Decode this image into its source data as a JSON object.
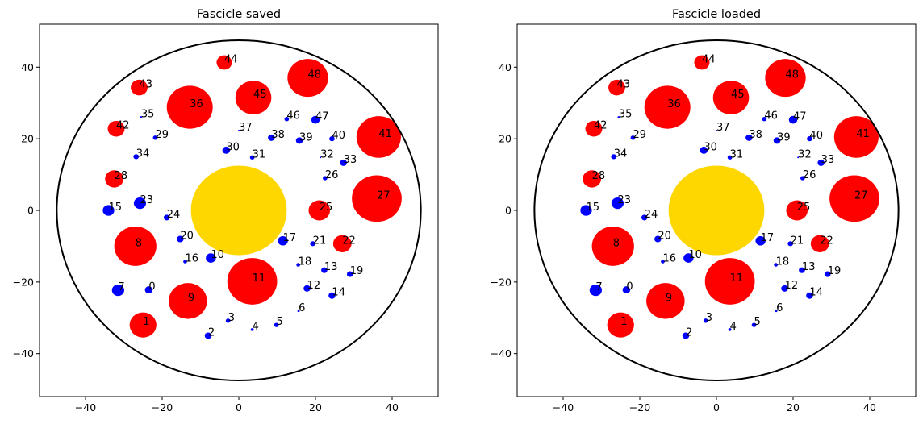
{
  "chart_data": [
    {
      "type": "scatter",
      "title": "Fascicle saved",
      "xlim": [
        -52,
        52
      ],
      "ylim": [
        -52,
        52
      ],
      "xticks": [
        -40,
        -20,
        0,
        20,
        40
      ],
      "yticks": [
        -40,
        -20,
        0,
        20,
        40
      ],
      "grid": false,
      "boundary_circle": {
        "cx": 0,
        "cy": 0,
        "r": 47.5,
        "color": "#000000"
      },
      "nerve": {
        "x": 0,
        "y": 0,
        "r": 12.5,
        "color": "#ffd700"
      },
      "axons": [
        {
          "label": "0",
          "x": -23.5,
          "y": -22.2,
          "r": 1.0,
          "color": "#0000ff"
        },
        {
          "label": "1",
          "x": -25.0,
          "y": -32.0,
          "r": 3.5,
          "color": "#ff0000"
        },
        {
          "label": "2",
          "x": -8.0,
          "y": -35.0,
          "r": 0.9,
          "color": "#0000ff"
        },
        {
          "label": "3",
          "x": -2.8,
          "y": -30.8,
          "r": 0.6,
          "color": "#0000ff"
        },
        {
          "label": "4",
          "x": 3.5,
          "y": -33.3,
          "r": 0.4,
          "color": "#0000ff"
        },
        {
          "label": "5",
          "x": 9.8,
          "y": -32.0,
          "r": 0.6,
          "color": "#0000ff"
        },
        {
          "label": "6",
          "x": 15.6,
          "y": -28.1,
          "r": 0.3,
          "color": "#0000ff"
        },
        {
          "label": "7",
          "x": -31.5,
          "y": -22.3,
          "r": 1.6,
          "color": "#0000ff"
        },
        {
          "label": "8",
          "x": -27.0,
          "y": -10.0,
          "r": 5.5,
          "color": "#ff0000"
        },
        {
          "label": "9",
          "x": -13.3,
          "y": -25.3,
          "r": 5.0,
          "color": "#ff0000"
        },
        {
          "label": "10",
          "x": -7.3,
          "y": -13.3,
          "r": 1.3,
          "color": "#0000ff"
        },
        {
          "label": "11",
          "x": 3.5,
          "y": -19.8,
          "r": 6.5,
          "color": "#ff0000"
        },
        {
          "label": "12",
          "x": 17.8,
          "y": -21.8,
          "r": 0.9,
          "color": "#0000ff"
        },
        {
          "label": "13",
          "x": 22.3,
          "y": -16.7,
          "r": 0.8,
          "color": "#0000ff"
        },
        {
          "label": "14",
          "x": 24.3,
          "y": -23.8,
          "r": 0.9,
          "color": "#0000ff"
        },
        {
          "label": "15",
          "x": -34.0,
          "y": 0.0,
          "r": 1.5,
          "color": "#0000ff"
        },
        {
          "label": "16",
          "x": -14.0,
          "y": -14.3,
          "r": 0.5,
          "color": "#0000ff"
        },
        {
          "label": "17",
          "x": 11.5,
          "y": -8.5,
          "r": 1.3,
          "color": "#0000ff"
        },
        {
          "label": "18",
          "x": 15.5,
          "y": -15.2,
          "r": 0.5,
          "color": "#0000ff"
        },
        {
          "label": "19",
          "x": 29.0,
          "y": -17.8,
          "r": 0.8,
          "color": "#0000ff"
        },
        {
          "label": "20",
          "x": -15.3,
          "y": -8.0,
          "r": 0.9,
          "color": "#0000ff"
        },
        {
          "label": "21",
          "x": 19.3,
          "y": -9.3,
          "r": 0.7,
          "color": "#0000ff"
        },
        {
          "label": "22",
          "x": 27.0,
          "y": -9.3,
          "r": 2.4,
          "color": "#ff0000"
        },
        {
          "label": "23",
          "x": -25.8,
          "y": 2.0,
          "r": 1.6,
          "color": "#0000ff"
        },
        {
          "label": "24",
          "x": -18.8,
          "y": -2.0,
          "r": 0.8,
          "color": "#0000ff"
        },
        {
          "label": "25",
          "x": 21.0,
          "y": 0.0,
          "r": 2.8,
          "color": "#ff0000"
        },
        {
          "label": "26",
          "x": 22.5,
          "y": 9.0,
          "r": 0.6,
          "color": "#0000ff"
        },
        {
          "label": "27",
          "x": 36.0,
          "y": 3.3,
          "r": 6.5,
          "color": "#ff0000"
        },
        {
          "label": "28",
          "x": -32.5,
          "y": 8.8,
          "r": 2.4,
          "color": "#ff0000"
        },
        {
          "label": "29",
          "x": -21.8,
          "y": 20.3,
          "r": 0.6,
          "color": "#0000ff"
        },
        {
          "label": "30",
          "x": -3.3,
          "y": 16.8,
          "r": 1.0,
          "color": "#0000ff"
        },
        {
          "label": "31",
          "x": 3.5,
          "y": 14.8,
          "r": 0.6,
          "color": "#0000ff"
        },
        {
          "label": "32",
          "x": 21.3,
          "y": 14.8,
          "r": 0.2,
          "color": "#0000ff"
        },
        {
          "label": "33",
          "x": 27.3,
          "y": 13.3,
          "r": 0.9,
          "color": "#0000ff"
        },
        {
          "label": "34",
          "x": -26.8,
          "y": 15.0,
          "r": 0.7,
          "color": "#0000ff"
        },
        {
          "label": "35",
          "x": -25.5,
          "y": 26.0,
          "r": 0.3,
          "color": "#0000ff"
        },
        {
          "label": "36",
          "x": -12.8,
          "y": 28.8,
          "r": 6.0,
          "color": "#ff0000"
        },
        {
          "label": "37",
          "x": 0.0,
          "y": 22.3,
          "r": 0.2,
          "color": "#0000ff"
        },
        {
          "label": "38",
          "x": 8.5,
          "y": 20.3,
          "r": 0.9,
          "color": "#0000ff"
        },
        {
          "label": "39",
          "x": 15.8,
          "y": 19.5,
          "r": 0.9,
          "color": "#0000ff"
        },
        {
          "label": "40",
          "x": 24.3,
          "y": 20.0,
          "r": 0.7,
          "color": "#0000ff"
        },
        {
          "label": "41",
          "x": 36.5,
          "y": 20.5,
          "r": 5.8,
          "color": "#ff0000"
        },
        {
          "label": "42",
          "x": -32.0,
          "y": 22.8,
          "r": 2.2,
          "color": "#ff0000"
        },
        {
          "label": "43",
          "x": -26.0,
          "y": 34.3,
          "r": 2.2,
          "color": "#ff0000"
        },
        {
          "label": "44",
          "x": -3.8,
          "y": 41.3,
          "r": 2.0,
          "color": "#ff0000"
        },
        {
          "label": "45",
          "x": 3.8,
          "y": 31.5,
          "r": 4.7,
          "color": "#ff0000"
        },
        {
          "label": "46",
          "x": 12.5,
          "y": 25.5,
          "r": 0.6,
          "color": "#0000ff"
        },
        {
          "label": "47",
          "x": 20.0,
          "y": 25.3,
          "r": 1.1,
          "color": "#0000ff"
        },
        {
          "label": "48",
          "x": 18.0,
          "y": 37.0,
          "r": 5.3,
          "color": "#ff0000"
        }
      ]
    },
    {
      "type": "scatter",
      "title": "Fascicle loaded",
      "xlim": [
        -52,
        52
      ],
      "ylim": [
        -52,
        52
      ],
      "xticks": [
        -40,
        -20,
        0,
        20,
        40
      ],
      "yticks": [
        -40,
        -20,
        0,
        20,
        40
      ],
      "grid": false,
      "boundary_circle": {
        "cx": 0,
        "cy": 0,
        "r": 47.5,
        "color": "#000000"
      },
      "nerve": {
        "x": 0,
        "y": 0,
        "r": 12.5,
        "color": "#ffd700"
      },
      "axons": [
        {
          "label": "0",
          "x": -23.5,
          "y": -22.2,
          "r": 1.0,
          "color": "#0000ff"
        },
        {
          "label": "1",
          "x": -25.0,
          "y": -32.0,
          "r": 3.5,
          "color": "#ff0000"
        },
        {
          "label": "2",
          "x": -8.0,
          "y": -35.0,
          "r": 0.9,
          "color": "#0000ff"
        },
        {
          "label": "3",
          "x": -2.8,
          "y": -30.8,
          "r": 0.6,
          "color": "#0000ff"
        },
        {
          "label": "4",
          "x": 3.5,
          "y": -33.3,
          "r": 0.4,
          "color": "#0000ff"
        },
        {
          "label": "5",
          "x": 9.8,
          "y": -32.0,
          "r": 0.6,
          "color": "#0000ff"
        },
        {
          "label": "6",
          "x": 15.6,
          "y": -28.1,
          "r": 0.3,
          "color": "#0000ff"
        },
        {
          "label": "7",
          "x": -31.5,
          "y": -22.3,
          "r": 1.6,
          "color": "#0000ff"
        },
        {
          "label": "8",
          "x": -27.0,
          "y": -10.0,
          "r": 5.5,
          "color": "#ff0000"
        },
        {
          "label": "9",
          "x": -13.3,
          "y": -25.3,
          "r": 5.0,
          "color": "#ff0000"
        },
        {
          "label": "10",
          "x": -7.3,
          "y": -13.3,
          "r": 1.3,
          "color": "#0000ff"
        },
        {
          "label": "11",
          "x": 3.5,
          "y": -19.8,
          "r": 6.5,
          "color": "#ff0000"
        },
        {
          "label": "12",
          "x": 17.8,
          "y": -21.8,
          "r": 0.9,
          "color": "#0000ff"
        },
        {
          "label": "13",
          "x": 22.3,
          "y": -16.7,
          "r": 0.8,
          "color": "#0000ff"
        },
        {
          "label": "14",
          "x": 24.3,
          "y": -23.8,
          "r": 0.9,
          "color": "#0000ff"
        },
        {
          "label": "15",
          "x": -34.0,
          "y": 0.0,
          "r": 1.5,
          "color": "#0000ff"
        },
        {
          "label": "16",
          "x": -14.0,
          "y": -14.3,
          "r": 0.5,
          "color": "#0000ff"
        },
        {
          "label": "17",
          "x": 11.5,
          "y": -8.5,
          "r": 1.3,
          "color": "#0000ff"
        },
        {
          "label": "18",
          "x": 15.5,
          "y": -15.2,
          "r": 0.5,
          "color": "#0000ff"
        },
        {
          "label": "19",
          "x": 29.0,
          "y": -17.8,
          "r": 0.8,
          "color": "#0000ff"
        },
        {
          "label": "20",
          "x": -15.3,
          "y": -8.0,
          "r": 0.9,
          "color": "#0000ff"
        },
        {
          "label": "21",
          "x": 19.3,
          "y": -9.3,
          "r": 0.7,
          "color": "#0000ff"
        },
        {
          "label": "22",
          "x": 27.0,
          "y": -9.3,
          "r": 2.4,
          "color": "#ff0000"
        },
        {
          "label": "23",
          "x": -25.8,
          "y": 2.0,
          "r": 1.6,
          "color": "#0000ff"
        },
        {
          "label": "24",
          "x": -18.8,
          "y": -2.0,
          "r": 0.8,
          "color": "#0000ff"
        },
        {
          "label": "25",
          "x": 21.0,
          "y": 0.0,
          "r": 2.8,
          "color": "#ff0000"
        },
        {
          "label": "26",
          "x": 22.5,
          "y": 9.0,
          "r": 0.6,
          "color": "#0000ff"
        },
        {
          "label": "27",
          "x": 36.0,
          "y": 3.3,
          "r": 6.5,
          "color": "#ff0000"
        },
        {
          "label": "28",
          "x": -32.5,
          "y": 8.8,
          "r": 2.4,
          "color": "#ff0000"
        },
        {
          "label": "29",
          "x": -21.8,
          "y": 20.3,
          "r": 0.6,
          "color": "#0000ff"
        },
        {
          "label": "30",
          "x": -3.3,
          "y": 16.8,
          "r": 1.0,
          "color": "#0000ff"
        },
        {
          "label": "31",
          "x": 3.5,
          "y": 14.8,
          "r": 0.6,
          "color": "#0000ff"
        },
        {
          "label": "32",
          "x": 21.3,
          "y": 14.8,
          "r": 0.2,
          "color": "#0000ff"
        },
        {
          "label": "33",
          "x": 27.3,
          "y": 13.3,
          "r": 0.9,
          "color": "#0000ff"
        },
        {
          "label": "34",
          "x": -26.8,
          "y": 15.0,
          "r": 0.7,
          "color": "#0000ff"
        },
        {
          "label": "35",
          "x": -25.5,
          "y": 26.0,
          "r": 0.3,
          "color": "#0000ff"
        },
        {
          "label": "36",
          "x": -12.8,
          "y": 28.8,
          "r": 6.0,
          "color": "#ff0000"
        },
        {
          "label": "37",
          "x": 0.0,
          "y": 22.3,
          "r": 0.2,
          "color": "#0000ff"
        },
        {
          "label": "38",
          "x": 8.5,
          "y": 20.3,
          "r": 0.9,
          "color": "#0000ff"
        },
        {
          "label": "39",
          "x": 15.8,
          "y": 19.5,
          "r": 0.9,
          "color": "#0000ff"
        },
        {
          "label": "40",
          "x": 24.3,
          "y": 20.0,
          "r": 0.7,
          "color": "#0000ff"
        },
        {
          "label": "41",
          "x": 36.5,
          "y": 20.5,
          "r": 5.8,
          "color": "#ff0000"
        },
        {
          "label": "42",
          "x": -32.0,
          "y": 22.8,
          "r": 2.2,
          "color": "#ff0000"
        },
        {
          "label": "43",
          "x": -26.0,
          "y": 34.3,
          "r": 2.2,
          "color": "#ff0000"
        },
        {
          "label": "44",
          "x": -3.8,
          "y": 41.3,
          "r": 2.0,
          "color": "#ff0000"
        },
        {
          "label": "45",
          "x": 3.8,
          "y": 31.5,
          "r": 4.7,
          "color": "#ff0000"
        },
        {
          "label": "46",
          "x": 12.5,
          "y": 25.5,
          "r": 0.6,
          "color": "#0000ff"
        },
        {
          "label": "47",
          "x": 20.0,
          "y": 25.3,
          "r": 1.1,
          "color": "#0000ff"
        },
        {
          "label": "48",
          "x": 18.0,
          "y": 37.0,
          "r": 5.3,
          "color": "#ff0000"
        }
      ]
    }
  ]
}
